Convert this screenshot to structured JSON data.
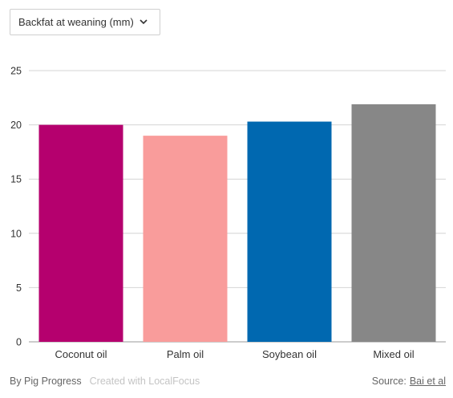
{
  "dropdown": {
    "selected": "Backfat at weaning (mm)",
    "icon": "chevron-down-icon"
  },
  "chart_data": {
    "type": "bar",
    "categories": [
      "Coconut oil",
      "Palm oil",
      "Soybean oil",
      "Mixed oil"
    ],
    "values": [
      20.0,
      19.0,
      20.3,
      21.9
    ],
    "colors": [
      "#b5006e",
      "#f99c9b",
      "#0068b0",
      "#878787"
    ],
    "ylim": [
      0,
      25
    ],
    "yticks": [
      0,
      5,
      10,
      15,
      20,
      25
    ],
    "grid": true,
    "legend": "none"
  },
  "footer": {
    "by": "By Pig Progress",
    "created": "Created with LocalFocus",
    "source_label": "Source:",
    "source_link": "Bai et al"
  }
}
